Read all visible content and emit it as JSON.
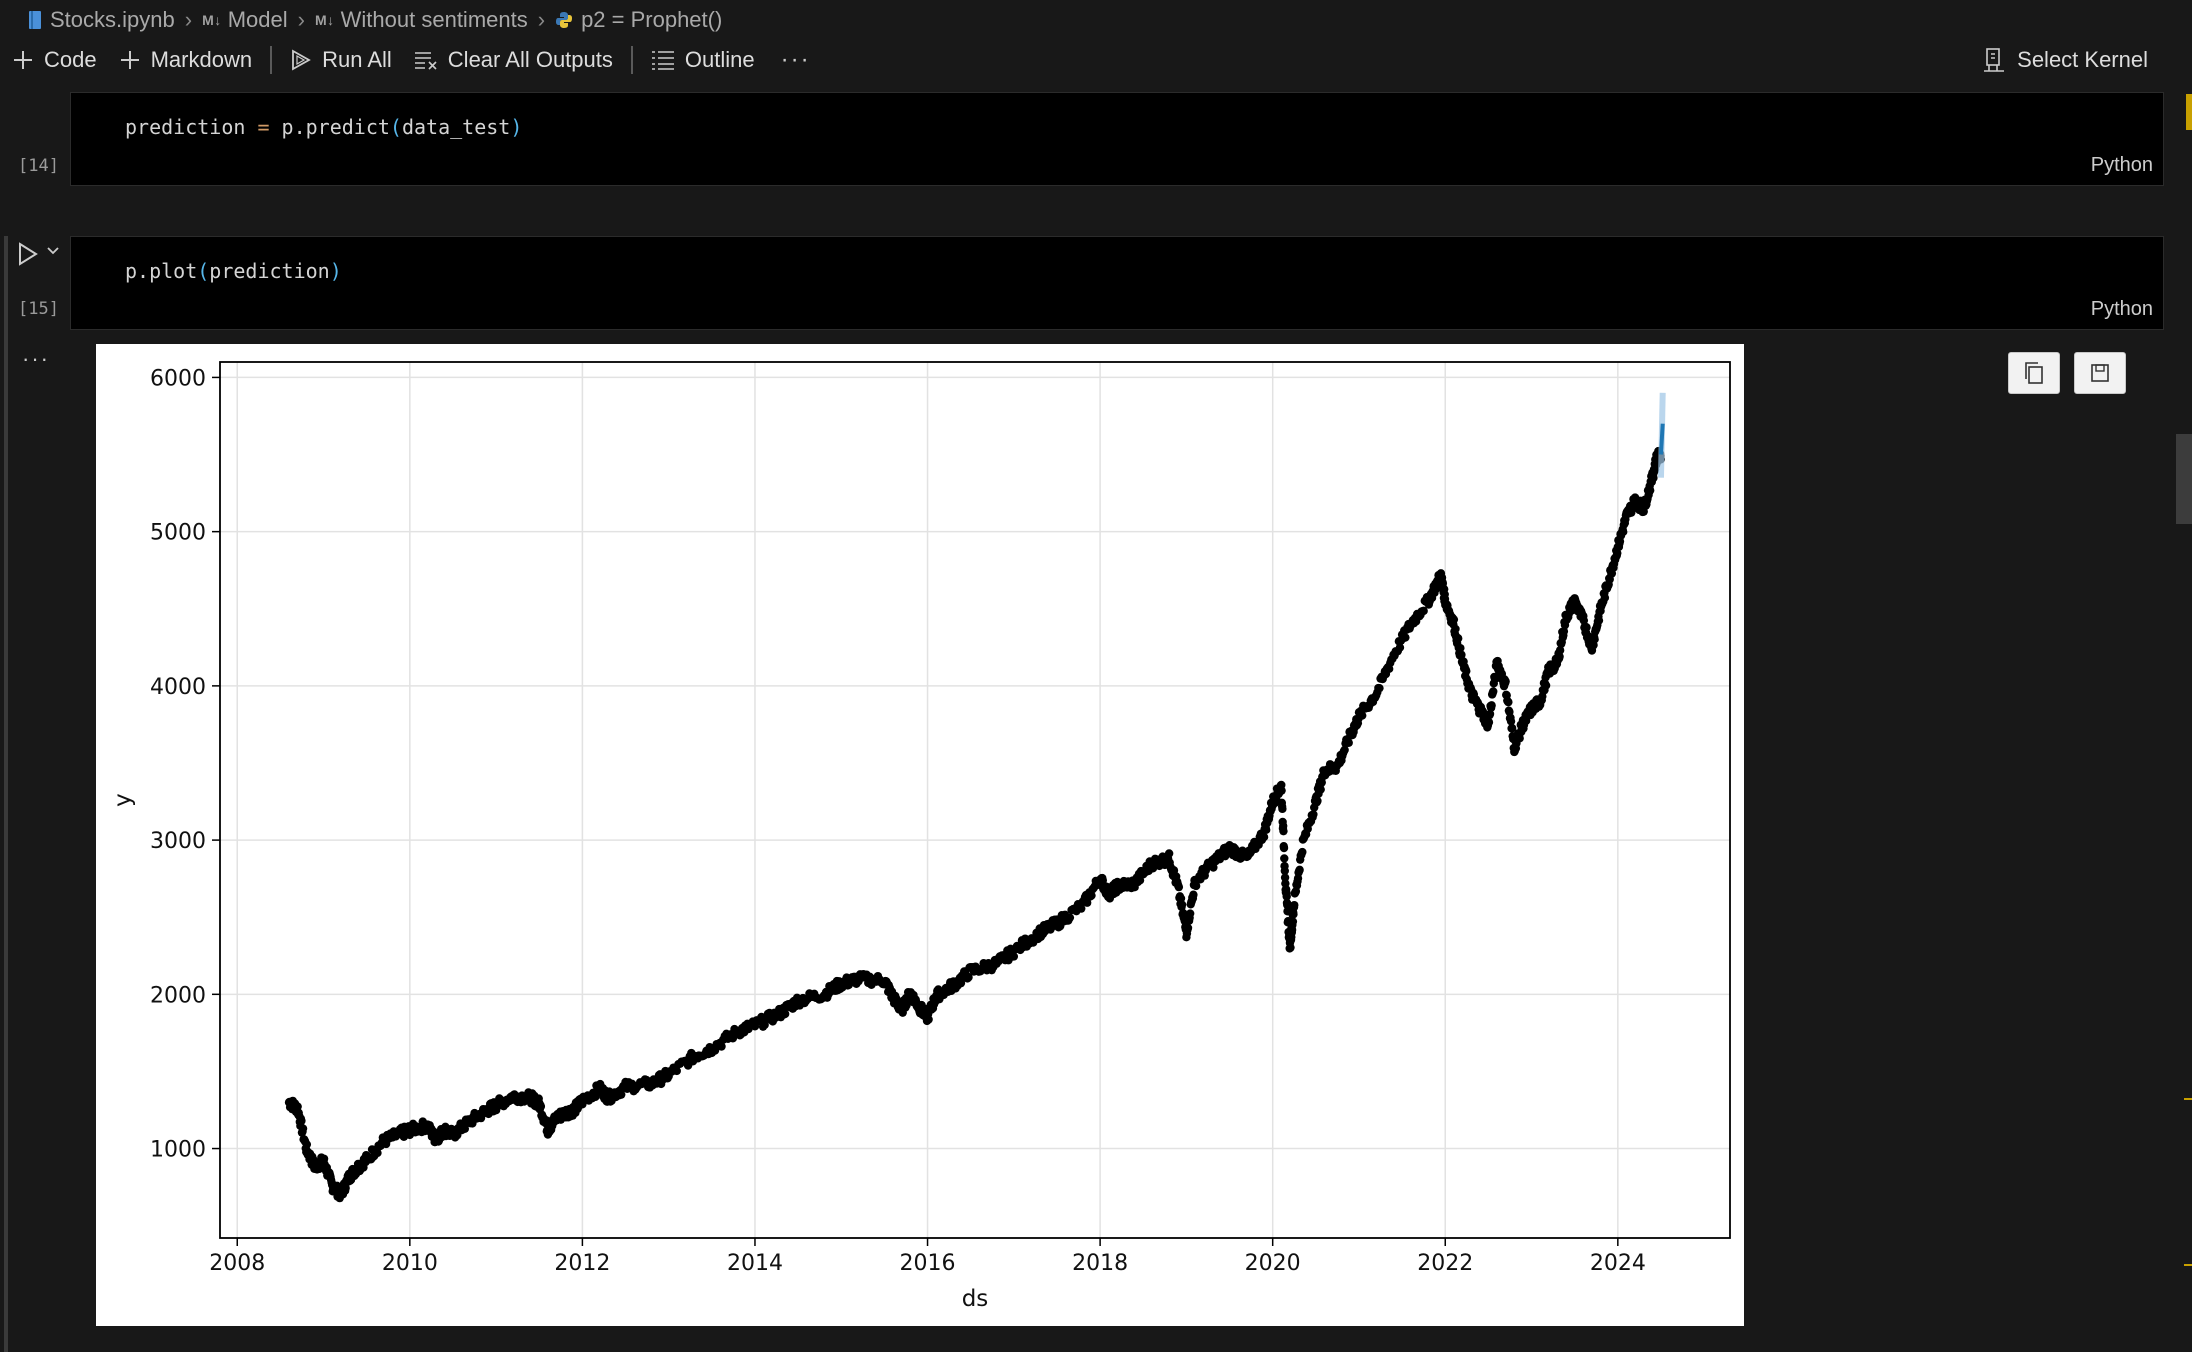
{
  "breadcrumb": {
    "file": "Stocks.ipynb",
    "section1_badge": "M↓",
    "section1": "Model",
    "section2_badge": "M↓",
    "section2": "Without sentiments",
    "symbol": "p2 = Prophet()"
  },
  "toolbar": {
    "code": "Code",
    "markdown": "Markdown",
    "run_all": "Run All",
    "clear_all_outputs": "Clear All Outputs",
    "outline": "Outline",
    "more": "···",
    "select_kernel": "Select Kernel"
  },
  "cells": [
    {
      "execution_count": "[14]",
      "code": "prediction = p.predict(data_test)",
      "language": "Python"
    },
    {
      "execution_count": "[15]",
      "code": "p.plot(prediction)",
      "language": "Python"
    }
  ],
  "output": {
    "more": "···"
  },
  "colors": {
    "background": "#181818",
    "editor": "#000000",
    "forecast": "#1f77b4",
    "points": "#000000",
    "accent_yellow": "#c8a000"
  },
  "chart_data": {
    "type": "scatter",
    "xlabel": "ds",
    "ylabel": "y",
    "xlim": [
      2007.8,
      2025.3
    ],
    "ylim": [
      420,
      6100
    ],
    "xticks": [
      2008,
      2010,
      2012,
      2014,
      2016,
      2018,
      2020,
      2022,
      2024
    ],
    "yticks": [
      1000,
      2000,
      3000,
      4000,
      5000,
      6000
    ],
    "grid": true,
    "series": [
      {
        "x": [
          2008.6,
          2008.7,
          2008.8,
          2008.9,
          2009.0,
          2009.1,
          2009.2,
          2009.3,
          2009.4,
          2009.5,
          2009.7,
          2009.9,
          2010.0,
          2010.2,
          2010.3,
          2010.4,
          2010.5,
          2010.7,
          2010.9,
          2011.0,
          2011.2,
          2011.4,
          2011.5,
          2011.6,
          2011.7,
          2011.8,
          2011.9,
          2012.0,
          2012.2,
          2012.3,
          2012.5,
          2012.8,
          2013.0,
          2013.3,
          2013.5,
          2013.8,
          2014.0,
          2014.3,
          2014.5,
          2014.8,
          2015.0,
          2015.2,
          2015.5,
          2015.6,
          2015.7,
          2015.8,
          2015.9,
          2016.0,
          2016.1,
          2016.3,
          2016.5,
          2016.8,
          2017.0,
          2017.3,
          2017.5,
          2017.8,
          2018.0,
          2018.1,
          2018.2,
          2018.4,
          2018.6,
          2018.8,
          2018.9,
          2019.0,
          2019.1,
          2019.3,
          2019.5,
          2019.7,
          2019.9,
          2020.0,
          2020.1,
          2020.15,
          2020.2,
          2020.25,
          2020.35,
          2020.5,
          2020.6,
          2020.75,
          2020.9,
          2021.0,
          2021.2,
          2021.4,
          2021.6,
          2021.8,
          2021.95,
          2022.0,
          2022.1,
          2022.2,
          2022.3,
          2022.4,
          2022.5,
          2022.6,
          2022.7,
          2022.8,
          2022.9,
          2023.0,
          2023.1,
          2023.2,
          2023.3,
          2023.4,
          2023.5,
          2023.6,
          2023.7,
          2023.8,
          2023.9,
          2024.0,
          2024.1,
          2024.2,
          2024.3,
          2024.4,
          2024.45,
          2024.5
        ],
        "y": [
          1300,
          1260,
          1000,
          880,
          920,
          760,
          700,
          820,
          880,
          930,
          1050,
          1100,
          1120,
          1150,
          1060,
          1120,
          1090,
          1180,
          1250,
          1280,
          1340,
          1330,
          1290,
          1120,
          1200,
          1230,
          1250,
          1310,
          1390,
          1330,
          1400,
          1420,
          1480,
          1600,
          1650,
          1760,
          1800,
          1880,
          1960,
          2000,
          2070,
          2100,
          2090,
          1980,
          1900,
          2010,
          1920,
          1850,
          1990,
          2060,
          2150,
          2200,
          2280,
          2400,
          2460,
          2580,
          2750,
          2650,
          2700,
          2720,
          2850,
          2880,
          2700,
          2400,
          2730,
          2850,
          2950,
          2880,
          3050,
          3250,
          3350,
          2700,
          2300,
          2600,
          2980,
          3250,
          3450,
          3480,
          3680,
          3800,
          3950,
          4200,
          4400,
          4550,
          4720,
          4550,
          4400,
          4150,
          3950,
          3850,
          3750,
          4150,
          4000,
          3600,
          3750,
          3850,
          3900,
          4100,
          4150,
          4450,
          4550,
          4420,
          4250,
          4500,
          4700,
          4900,
          5100,
          5200,
          5150,
          5350,
          5480,
          5500
        ]
      },
      {
        "name": "forecast",
        "x": [
          2024.5,
          2024.52
        ],
        "y": [
          5500,
          5700
        ]
      }
    ]
  }
}
